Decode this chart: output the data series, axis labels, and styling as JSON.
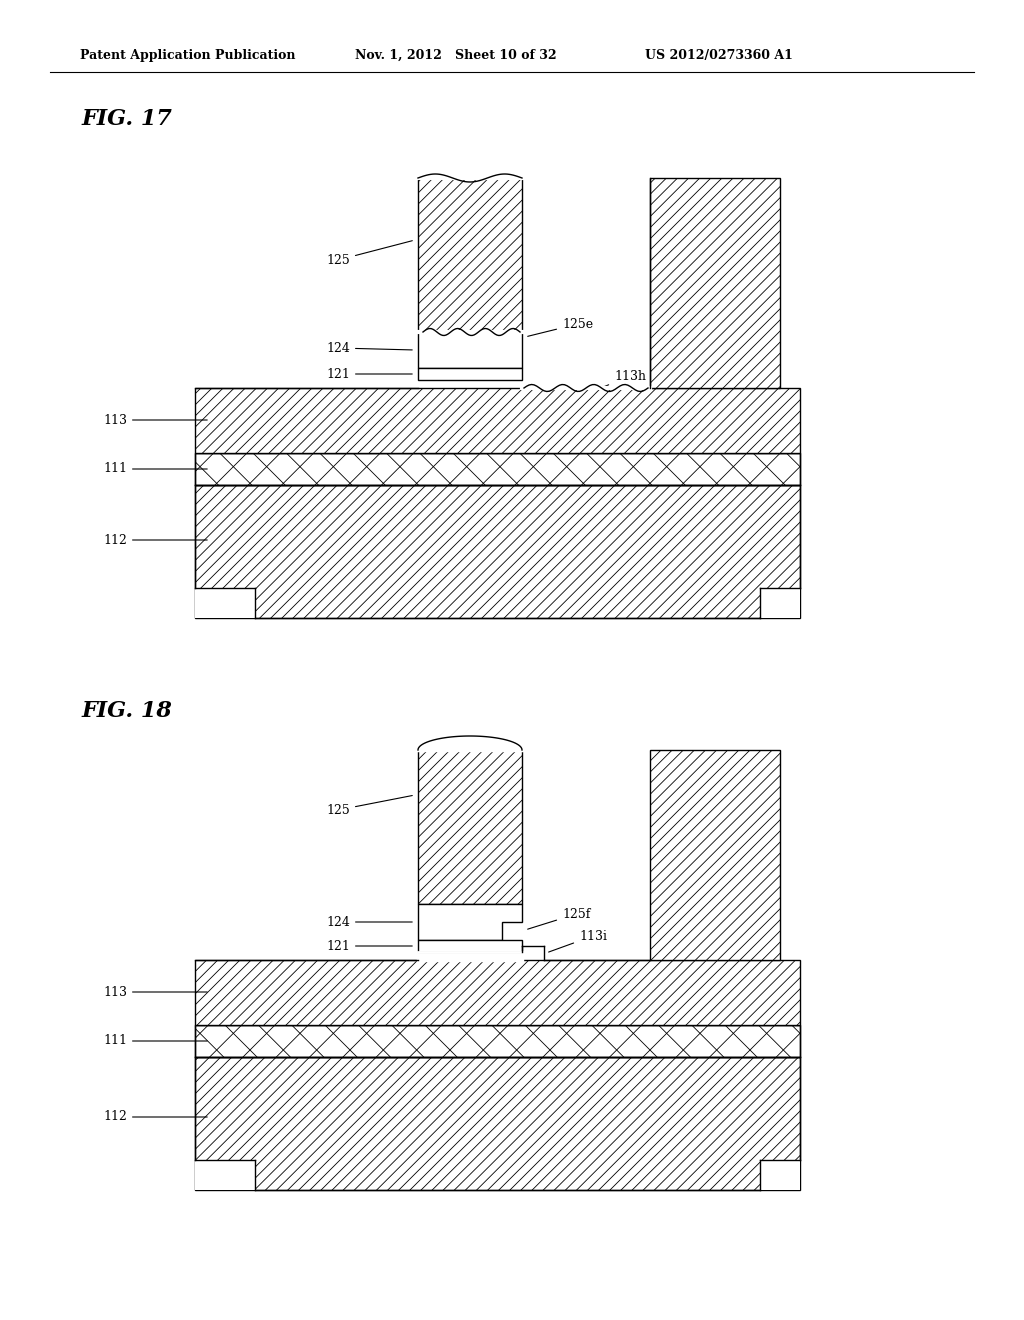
{
  "header_left": "Patent Application Publication",
  "header_mid": "Nov. 1, 2012   Sheet 10 of 32",
  "header_right": "US 2012/0273360 A1",
  "fig17_title": "FIG. 17",
  "fig18_title": "FIG. 18",
  "bg_color": "#ffffff",
  "line_color": "#000000",
  "lw": 1.0,
  "hatch_lw": 0.5
}
